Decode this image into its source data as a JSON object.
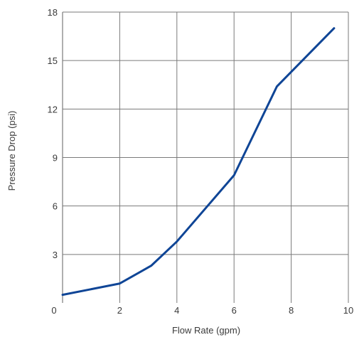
{
  "chart_data": {
    "type": "line",
    "xlabel": "Flow Rate (gpm)",
    "ylabel": "Pressure Drop (psi)",
    "xlim": [
      0,
      10
    ],
    "ylim": [
      0,
      18
    ],
    "x_ticks": [
      "0",
      "2",
      "4",
      "6",
      "8",
      "10"
    ],
    "y_ticks": [
      "3",
      "6",
      "9",
      "12",
      "15",
      "18"
    ],
    "grid": true,
    "colors": {
      "line": "#0f4596",
      "grid": "#7a7a7a",
      "axis": "#7a7a7a"
    },
    "series": [
      {
        "x": [
          0,
          2,
          3.1,
          4,
          6,
          7.5,
          9.5
        ],
        "y": [
          0.5,
          1.2,
          2.3,
          3.8,
          7.9,
          13.4,
          17.0
        ]
      }
    ]
  }
}
